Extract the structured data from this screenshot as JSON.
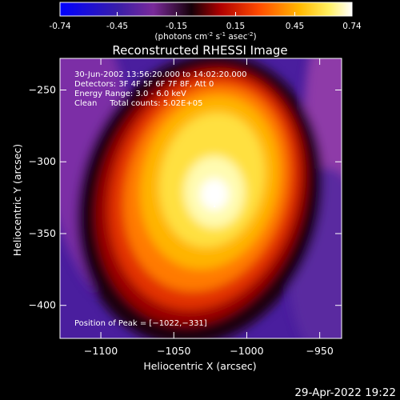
{
  "colorbar": {
    "ticks": [
      "-0.74",
      "-0.45",
      "-0.15",
      "0.15",
      "0.45",
      "0.74"
    ],
    "unit_label_parts": [
      "(photons cm",
      "-2",
      " s",
      "-1",
      " asec",
      "-2",
      ")"
    ]
  },
  "chart_data": {
    "type": "heatmap",
    "title": "Reconstructed RHESSI Image",
    "xlabel": "Heliocentric X (arcsec)",
    "ylabel": "Heliocentric Y (arcsec)",
    "xlim": [
      -1128,
      -935
    ],
    "ylim": [
      -423,
      -228
    ],
    "x_ticks": [
      -1100,
      -1050,
      -1000,
      -950
    ],
    "x_tick_labels": [
      "−1100",
      "−1050",
      "−1000",
      "−950"
    ],
    "y_ticks": [
      -250,
      -300,
      -350,
      -400
    ],
    "y_tick_labels": [
      "−250",
      "−300",
      "−350",
      "−400"
    ],
    "value_range": [
      -0.74,
      0.74
    ],
    "colormap": "rhessi-thermal (blue-purple-black-red-yellow-white)",
    "peak_position": [
      -1022,
      -331
    ],
    "annotations": [
      "30-Jun-2002 13:56:20.000 to 14:02:20.000",
      "Detectors: 3F 4F 5F 6F 7F 8F, Att 0",
      "Energy Range: 3.0 - 6.0 keV",
      "Clean     Total counts: 5.02E+05"
    ],
    "peak_label": "Position of Peak = [−1022,−331]"
  },
  "footer": {
    "timestamp": "29-Apr-2022 19:22"
  }
}
